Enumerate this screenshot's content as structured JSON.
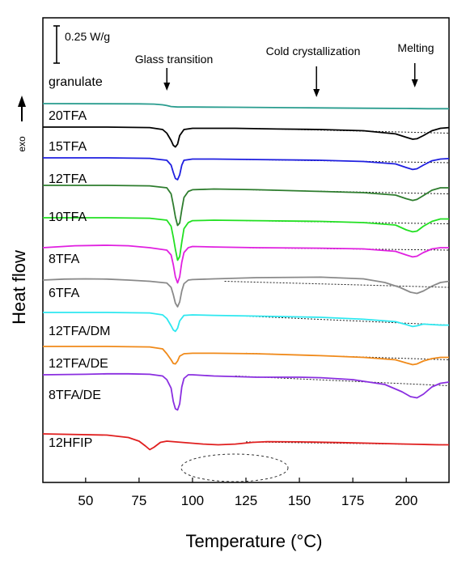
{
  "chart_data": {
    "type": "line",
    "xlabel": "Temperature (°C)",
    "ylabel": "Heat flow",
    "exo_label": "exo",
    "scale_bar_label": "0.25 W/g",
    "xlim": [
      30,
      220
    ],
    "xticks": [
      50,
      75,
      100,
      125,
      150,
      175,
      200
    ],
    "annotations": [
      {
        "text": "Glass transition",
        "x": 88
      },
      {
        "text": "Cold crystallization",
        "x": 158
      },
      {
        "text": "Melting",
        "x": 204
      }
    ],
    "series": [
      {
        "name": "granulate",
        "color": "#2a9d8f",
        "base": 0,
        "x": [
          30,
          60,
          75,
          82,
          86,
          88,
          90,
          93,
          100,
          120,
          150,
          180,
          200,
          210,
          220
        ],
        "y": [
          0.0,
          -0.005,
          -0.01,
          -0.02,
          -0.05,
          -0.08,
          -0.12,
          -0.14,
          -0.14,
          -0.15,
          -0.17,
          -0.19,
          -0.2,
          -0.21,
          -0.21
        ],
        "guide": null
      },
      {
        "name": "20TFA",
        "color": "#000000",
        "base": 1,
        "x": [
          30,
          60,
          80,
          86,
          88,
          90,
          91,
          92,
          93,
          94,
          96,
          100,
          110,
          120,
          140,
          160,
          180,
          195,
          200,
          203,
          205,
          208,
          212,
          216,
          220
        ],
        "y": [
          0,
          0,
          -0.02,
          -0.1,
          -0.25,
          -0.55,
          -0.75,
          -0.82,
          -0.7,
          -0.35,
          -0.1,
          -0.05,
          -0.05,
          -0.05,
          -0.08,
          -0.1,
          -0.15,
          -0.28,
          -0.42,
          -0.5,
          -0.48,
          -0.35,
          -0.15,
          -0.05,
          -0.02
        ],
        "guide": [
          [
            125,
            -0.05
          ],
          [
            220,
            -0.25
          ]
        ]
      },
      {
        "name": "15TFA",
        "color": "#1f1fe0",
        "base": 2,
        "x": [
          30,
          60,
          80,
          88,
          90,
          91,
          92,
          93,
          94,
          95,
          96,
          100,
          110,
          130,
          160,
          180,
          195,
          200,
          203,
          205,
          208,
          212,
          216,
          220
        ],
        "y": [
          0,
          0,
          -0.02,
          -0.1,
          -0.3,
          -0.6,
          -0.85,
          -0.9,
          -0.7,
          -0.3,
          -0.1,
          -0.05,
          -0.05,
          -0.07,
          -0.1,
          -0.15,
          -0.25,
          -0.4,
          -0.48,
          -0.45,
          -0.3,
          -0.12,
          -0.05,
          -0.03
        ],
        "guide": [
          [
            125,
            -0.07
          ],
          [
            220,
            -0.2
          ]
        ]
      },
      {
        "name": "12TFA",
        "color": "#2e7d2e",
        "base": 3,
        "x": [
          30,
          60,
          80,
          88,
          90,
          91,
          92,
          93,
          94,
          95,
          96,
          98,
          100,
          110,
          130,
          160,
          180,
          195,
          200,
          203,
          205,
          208,
          212,
          216,
          220
        ],
        "y": [
          0,
          0,
          -0.02,
          -0.1,
          -0.35,
          -0.8,
          -1.3,
          -1.65,
          -1.55,
          -1.0,
          -0.5,
          -0.25,
          -0.18,
          -0.15,
          -0.18,
          -0.25,
          -0.3,
          -0.4,
          -0.55,
          -0.62,
          -0.58,
          -0.42,
          -0.2,
          -0.1,
          -0.1
        ],
        "guide": [
          [
            125,
            -0.18
          ],
          [
            220,
            -0.35
          ]
        ]
      },
      {
        "name": "10TFA",
        "color": "#22e022",
        "base": 4,
        "x": [
          30,
          60,
          80,
          88,
          90,
          91,
          92,
          93,
          94,
          95,
          96,
          98,
          100,
          110,
          130,
          160,
          180,
          195,
          200,
          203,
          205,
          208,
          212,
          216,
          220
        ],
        "y": [
          0,
          0,
          -0.02,
          -0.1,
          -0.35,
          -0.8,
          -1.3,
          -1.75,
          -1.6,
          -1.0,
          -0.45,
          -0.2,
          -0.12,
          -0.1,
          -0.12,
          -0.15,
          -0.2,
          -0.3,
          -0.5,
          -0.58,
          -0.55,
          -0.35,
          -0.15,
          -0.05,
          -0.05
        ],
        "guide": [
          [
            125,
            -0.12
          ],
          [
            220,
            -0.25
          ]
        ]
      },
      {
        "name": "8TFA",
        "color": "#e020e0",
        "base": 5,
        "x": [
          30,
          45,
          60,
          70,
          80,
          88,
          90,
          91,
          92,
          93,
          94,
          95,
          96,
          98,
          100,
          110,
          130,
          160,
          180,
          195,
          200,
          203,
          205,
          208,
          212,
          216,
          220
        ],
        "y": [
          0,
          0.08,
          0.1,
          0.08,
          0.0,
          -0.1,
          -0.3,
          -0.7,
          -1.2,
          -1.45,
          -1.2,
          -0.6,
          -0.2,
          0.0,
          0.05,
          0.03,
          0.0,
          -0.02,
          -0.05,
          -0.15,
          -0.3,
          -0.38,
          -0.35,
          -0.2,
          -0.05,
          0,
          0
        ],
        "guide": [
          [
            125,
            0.0
          ],
          [
            220,
            -0.1
          ]
        ]
      },
      {
        "name": "6TFA",
        "color": "#8a8a8a",
        "base": 6,
        "x": [
          30,
          40,
          50,
          60,
          70,
          80,
          88,
          90,
          91,
          92,
          93,
          94,
          95,
          96,
          98,
          100,
          110,
          130,
          160,
          180,
          190,
          197,
          202,
          205,
          208,
          212,
          216,
          220
        ],
        "y": [
          0,
          0.04,
          0.05,
          0.04,
          0.0,
          -0.05,
          -0.12,
          -0.3,
          -0.6,
          -0.95,
          -1.1,
          -0.9,
          -0.45,
          -0.15,
          0.0,
          0.02,
          0.05,
          0.1,
          0.12,
          0.05,
          -0.1,
          -0.3,
          -0.5,
          -0.55,
          -0.45,
          -0.25,
          -0.1,
          -0.05
        ],
        "guide": [
          [
            115,
            -0.05
          ],
          [
            220,
            -0.3
          ]
        ]
      },
      {
        "name": "12TFA/DM",
        "color": "#2ee8f0",
        "base": 7,
        "x": [
          30,
          60,
          80,
          86,
          88,
          90,
          91,
          92,
          93,
          94,
          96,
          100,
          110,
          130,
          160,
          180,
          195,
          200,
          203,
          205,
          208,
          212,
          216,
          220
        ],
        "y": [
          0,
          0,
          -0.02,
          -0.1,
          -0.25,
          -0.55,
          -0.72,
          -0.78,
          -0.65,
          -0.35,
          -0.12,
          -0.1,
          -0.12,
          -0.15,
          -0.2,
          -0.28,
          -0.38,
          -0.5,
          -0.58,
          -0.55,
          -0.48,
          -0.5,
          -0.52,
          -0.52
        ],
        "guide": [
          [
            125,
            -0.15
          ],
          [
            220,
            -0.52
          ]
        ]
      },
      {
        "name": "12TFA/DE",
        "color": "#f08a1a",
        "base": 8,
        "x": [
          30,
          60,
          80,
          86,
          88,
          90,
          91,
          92,
          93,
          94,
          96,
          100,
          110,
          130,
          160,
          180,
          195,
          200,
          203,
          205,
          208,
          212,
          216,
          220
        ],
        "y": [
          0,
          0,
          -0.02,
          -0.1,
          -0.3,
          -0.55,
          -0.7,
          -0.72,
          -0.6,
          -0.4,
          -0.3,
          -0.28,
          -0.28,
          -0.3,
          -0.38,
          -0.45,
          -0.55,
          -0.68,
          -0.75,
          -0.72,
          -0.6,
          -0.5,
          -0.45,
          -0.45
        ],
        "guide": [
          [
            125,
            -0.28
          ],
          [
            220,
            -0.55
          ]
        ]
      },
      {
        "name": "8TFA/DE",
        "color": "#8a2ee0",
        "base": 9,
        "x": [
          30,
          50,
          60,
          70,
          80,
          86,
          88,
          90,
          91,
          92,
          93,
          94,
          95,
          96,
          98,
          100,
          110,
          130,
          150,
          160,
          175,
          190,
          198,
          202,
          205,
          208,
          212,
          216,
          220
        ],
        "y": [
          0,
          0.02,
          0.04,
          0.04,
          0.02,
          -0.05,
          -0.2,
          -0.55,
          -1.1,
          -1.4,
          -1.45,
          -1.2,
          -0.5,
          -0.15,
          0.0,
          0.0,
          -0.05,
          -0.1,
          -0.1,
          -0.12,
          -0.2,
          -0.4,
          -0.7,
          -0.9,
          -0.95,
          -0.8,
          -0.5,
          -0.35,
          -0.3
        ],
        "guide": [
          [
            120,
            -0.05
          ],
          [
            220,
            -0.45
          ]
        ]
      },
      {
        "name": "12HFIP",
        "color": "#e01f1f",
        "base": 10,
        "x": [
          30,
          60,
          70,
          75,
          78,
          80,
          82,
          85,
          88,
          95,
          105,
          112,
          120,
          128,
          135,
          150,
          170,
          190,
          200,
          205,
          210,
          215,
          220
        ],
        "y": [
          0,
          -0.05,
          -0.15,
          -0.3,
          -0.5,
          -0.65,
          -0.55,
          -0.35,
          -0.3,
          -0.35,
          -0.42,
          -0.45,
          -0.42,
          -0.35,
          -0.32,
          -0.33,
          -0.36,
          -0.4,
          -0.42,
          -0.43,
          -0.44,
          -0.45,
          -0.45
        ],
        "guide": [
          [
            125,
            -0.33
          ],
          [
            220,
            -0.45
          ]
        ]
      }
    ]
  }
}
